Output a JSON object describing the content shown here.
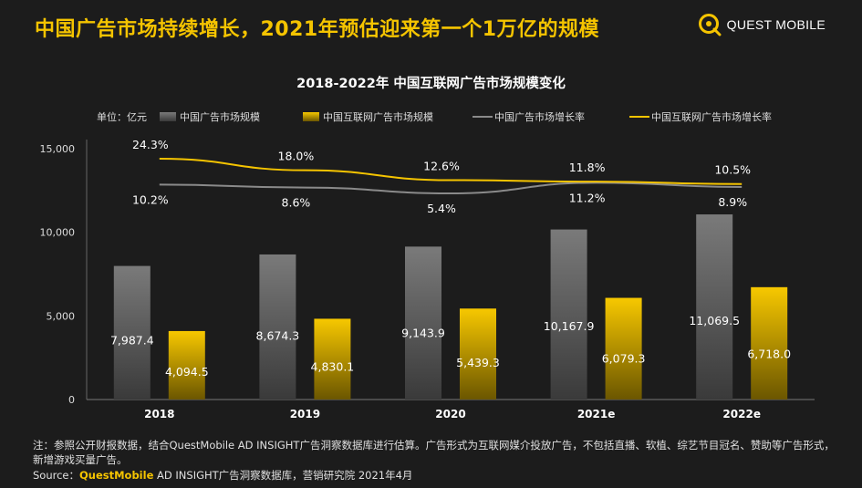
{
  "headline": "中国广告市场持续增长，2021年预估迎来第一个1万亿的规模",
  "logo": {
    "text": "QUEST MOBILE",
    "accent": "#f5c400"
  },
  "chart_data": {
    "type": "bar",
    "title": "2018-2022年 中国互联网广告市场规模变化",
    "unit": "单位：亿元",
    "categories": [
      "2018",
      "2019",
      "2020",
      "2021e",
      "2022e"
    ],
    "ylim": [
      0,
      15000
    ],
    "yticks": [
      0,
      5000,
      10000,
      15000
    ],
    "ytick_labels": [
      "0",
      "5,000",
      "10,000",
      "15,000"
    ],
    "series": [
      {
        "name": "中国广告市场规模",
        "kind": "bar",
        "color": "#8a8a8a",
        "values": [
          7987.4,
          8674.3,
          9143.9,
          10167.9,
          11069.5
        ],
        "labels": [
          "7,987.4",
          "8,674.3",
          "9,143.9",
          "10,167.9",
          "11,069.5"
        ]
      },
      {
        "name": "中国互联网广告市场规模",
        "kind": "bar",
        "color": "#f5c400",
        "values": [
          4094.5,
          4830.1,
          5439.3,
          6079.3,
          6718.0
        ],
        "labels": [
          "4,094.5",
          "4,830.1",
          "5,439.3",
          "6,079.3",
          "6,718.0"
        ]
      },
      {
        "name": "中国广告市场增长率",
        "kind": "line",
        "color": "#8a8a8a",
        "values": [
          10.2,
          8.6,
          5.4,
          11.2,
          8.9
        ],
        "labels": [
          "10.2%",
          "8.6%",
          "5.4%",
          "11.2%",
          "8.9%"
        ]
      },
      {
        "name": "中国互联网广告市场增长率",
        "kind": "line",
        "color": "#f5c400",
        "values": [
          24.3,
          18.0,
          12.6,
          11.8,
          10.5
        ],
        "labels": [
          "24.3%",
          "18.0%",
          "12.6%",
          "11.8%",
          "10.5%"
        ]
      }
    ]
  },
  "notes": "注：参照公开财报数据，结合QuestMobile AD INSIGHT广告洞察数据库进行估算。广告形式为互联网媒介投放广告，不包括直播、软植、综艺节目冠名、赞助等广告形式，新增游戏买量广告。",
  "source": {
    "prefix": "Source：",
    "brand": "QuestMobile",
    "rest": " AD INSIGHT广告洞察数据库，营销研究院 2021年4月"
  }
}
